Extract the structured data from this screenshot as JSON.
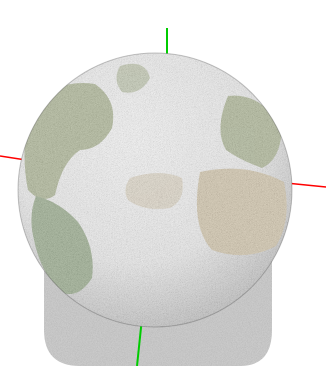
{
  "scene": {
    "background_color": "#ffffff",
    "axis_colors": {
      "x": "#ff0000",
      "y": "#00cc00"
    },
    "globe": {
      "surface": "earth-texture",
      "noise_style": "speckled-point-cloud",
      "ocean_color": "#c9c9c9",
      "land_colors": [
        "#6f7d4a",
        "#a8946a",
        "#4f6b3a"
      ]
    },
    "shadow_color": "#bdbdbd"
  }
}
